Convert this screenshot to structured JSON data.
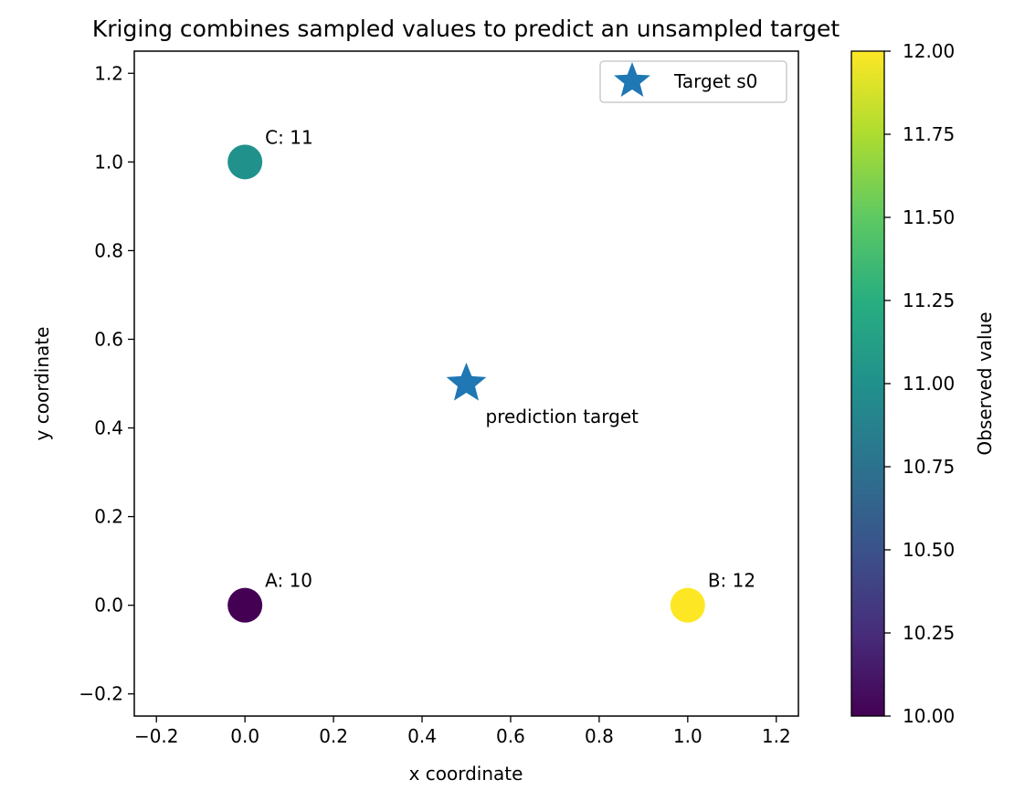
{
  "chart_data": {
    "type": "scatter",
    "title": "Kriging combines sampled values to predict an unsampled target",
    "xlabel": "x coordinate",
    "ylabel": "y coordinate",
    "xlim": [
      -0.25,
      1.25
    ],
    "ylim": [
      -0.25,
      1.25
    ],
    "xticks": [
      -0.2,
      0.0,
      0.2,
      0.4,
      0.6,
      0.8,
      1.0,
      1.2
    ],
    "yticks": [
      -0.2,
      0.0,
      0.2,
      0.4,
      0.6,
      0.8,
      1.0,
      1.2
    ],
    "x_tick_labels": [
      "−0.2",
      "0.0",
      "0.2",
      "0.4",
      "0.6",
      "0.8",
      "1.0",
      "1.2"
    ],
    "y_tick_labels": [
      "−0.2",
      "0.0",
      "0.2",
      "0.4",
      "0.6",
      "0.8",
      "1.0",
      "1.2"
    ],
    "grid": false,
    "samples": [
      {
        "label": "A: 10",
        "x": 0.0,
        "y": 0.0,
        "value": 10
      },
      {
        "label": "B: 12",
        "x": 1.0,
        "y": 0.0,
        "value": 12
      },
      {
        "label": "C: 11",
        "x": 0.0,
        "y": 1.0,
        "value": 11
      }
    ],
    "target": {
      "name": "Target s0",
      "x": 0.5,
      "y": 0.5,
      "annotation": "prediction target",
      "color": "#1f77b4",
      "marker": "star"
    },
    "legend": {
      "placement": "top-right",
      "entries": [
        "Target s0"
      ]
    },
    "colorbar": {
      "label": "Observed value",
      "colormap": "viridis",
      "range": [
        10.0,
        12.0
      ],
      "ticks": [
        10.0,
        10.25,
        10.5,
        10.75,
        11.0,
        11.25,
        11.5,
        11.75,
        12.0
      ],
      "tick_labels": [
        "10.00",
        "10.25",
        "10.50",
        "10.75",
        "11.00",
        "11.25",
        "11.50",
        "11.75",
        "12.00"
      ]
    }
  }
}
